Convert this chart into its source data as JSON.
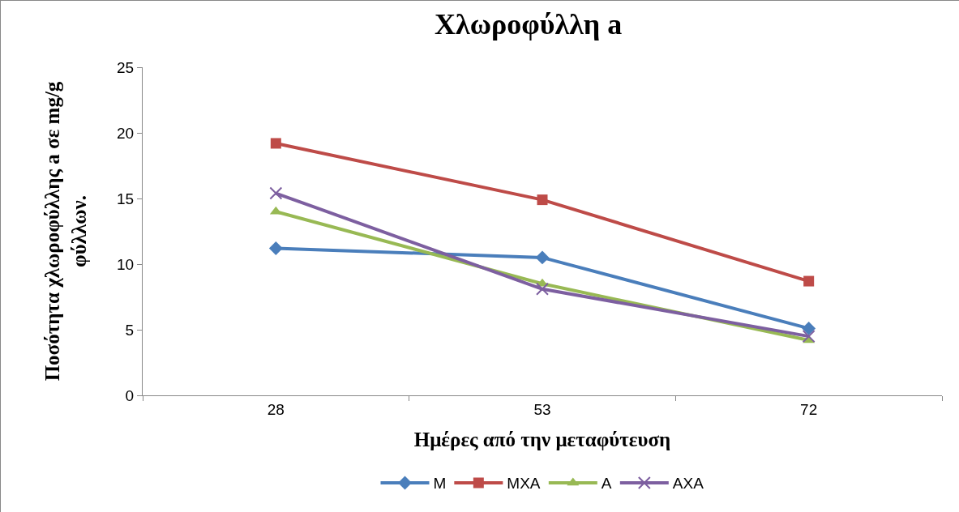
{
  "chart_data": {
    "type": "line",
    "title": "Χλωροφύλλη a",
    "xlabel": "Ημέρες από την μεταφύτευση",
    "ylabel": "Ποσότητα χλωροφύλλης a σε mg/g φύλλων.",
    "categories": [
      "28",
      "53",
      "72"
    ],
    "series": [
      {
        "name": "M",
        "color": "#4a7ebb",
        "marker": "diamond",
        "values": [
          11.2,
          10.5,
          5.1
        ]
      },
      {
        "name": "MXA",
        "color": "#be4b48",
        "marker": "square",
        "values": [
          19.2,
          14.9,
          8.7
        ]
      },
      {
        "name": "A",
        "color": "#98b954",
        "marker": "triangle",
        "values": [
          14.0,
          8.5,
          4.2
        ]
      },
      {
        "name": "AXA",
        "color": "#7d5fa0",
        "marker": "cross",
        "values": [
          15.4,
          8.1,
          4.5
        ]
      }
    ],
    "ylim": [
      0,
      25
    ],
    "yticks": [
      0,
      5,
      10,
      15,
      20,
      25
    ],
    "grid": false,
    "legend": "bottom",
    "line_style": "solid"
  }
}
